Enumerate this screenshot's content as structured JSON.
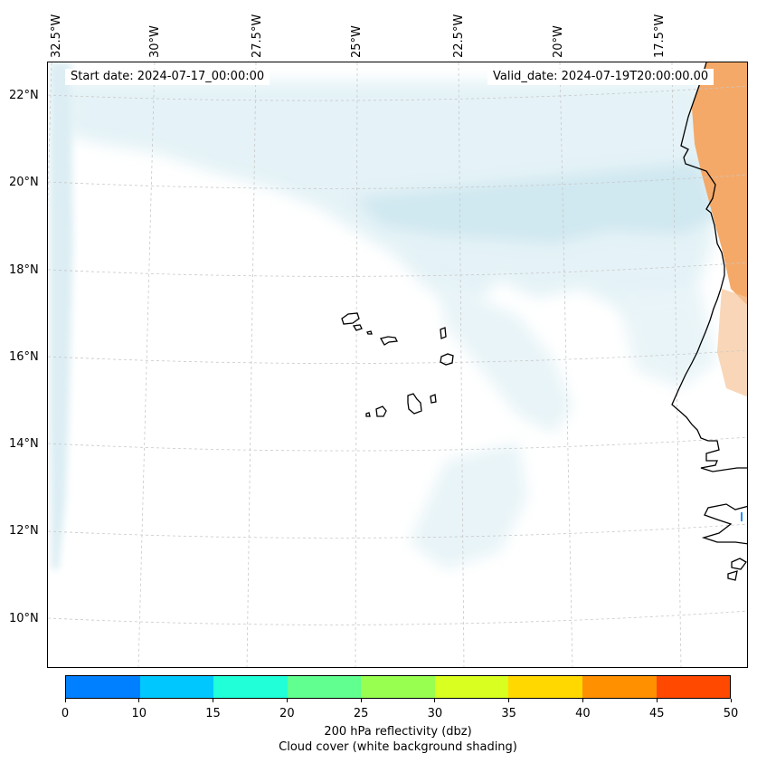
{
  "header": {
    "start_date": "Start date: 2024-07-17_00:00:00",
    "valid_date": "Valid_date: 2024-07-19T20:00:00.00"
  },
  "longitude_labels": [
    "32.5°W",
    "30°W",
    "27.5°W",
    "25°W",
    "22.5°W",
    "20°W",
    "17.5°W"
  ],
  "latitude_labels": [
    "22°N",
    "20°N",
    "18°N",
    "16°N",
    "14°N",
    "12°N",
    "10°N"
  ],
  "colorbar": {
    "ticks": [
      "0",
      "10",
      "15",
      "20",
      "25",
      "30",
      "35",
      "40",
      "45",
      "50"
    ],
    "colors": [
      "#0080ff",
      "#00c8ff",
      "#20ffd8",
      "#60ff90",
      "#98ff50",
      "#d8ff20",
      "#ffd800",
      "#ff9000",
      "#ff4800"
    ],
    "label": "200 hPa reflectivity (dbz)",
    "sublabel": "Cloud cover (white background shading)"
  },
  "map_style": {
    "cloud_color": "#add8e6",
    "land_shading_color": "#f4a460",
    "coastline_color": "#000000",
    "gridline_color": "#c8c8c8"
  }
}
